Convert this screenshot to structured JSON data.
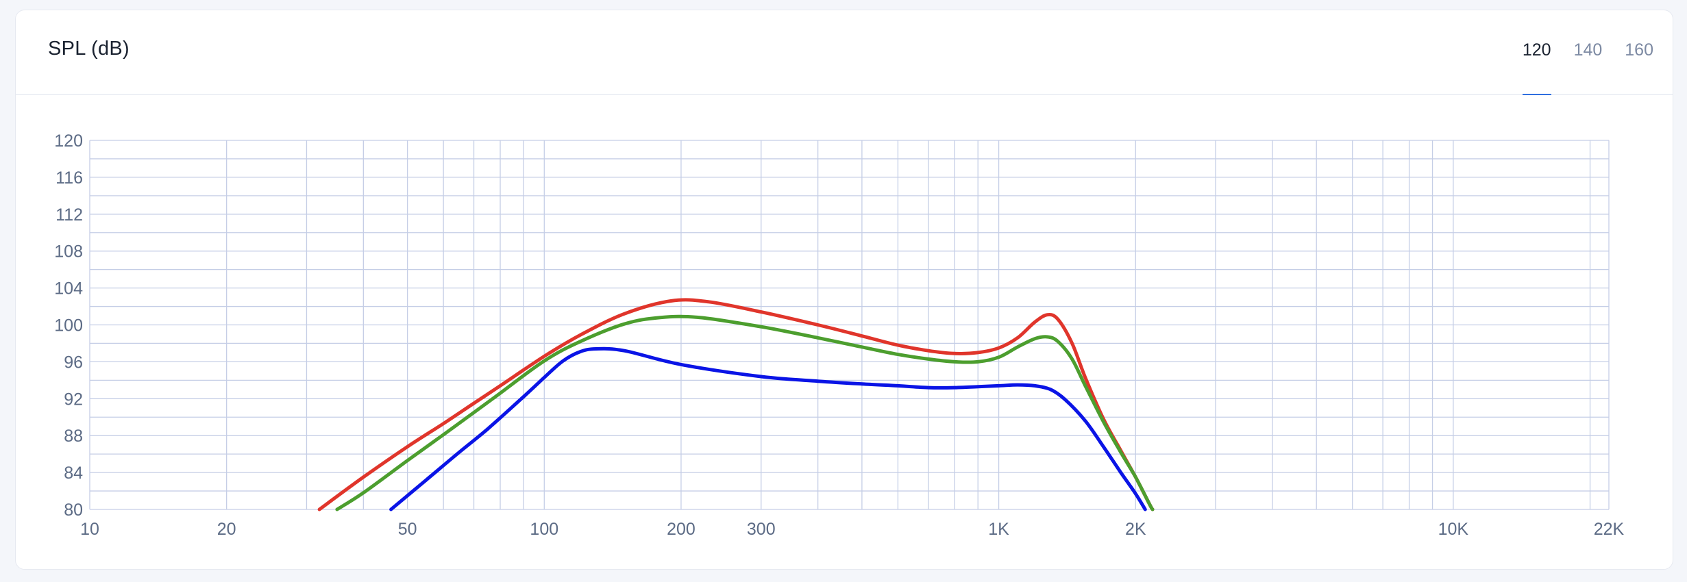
{
  "header": {
    "title": "SPL (dB)",
    "tabs": [
      {
        "label": "120",
        "active": true
      },
      {
        "label": "140",
        "active": false
      },
      {
        "label": "160",
        "active": false
      }
    ]
  },
  "colors": {
    "grid": "#c5cee6",
    "accent": "#2f6fe0",
    "series": [
      "#e0352b",
      "#4c9e2e",
      "#0a14e6"
    ]
  },
  "chart_data": {
    "type": "line",
    "title": "SPL (dB)",
    "xscale": "log",
    "xlim": [
      10,
      22000
    ],
    "ylim": [
      80,
      120
    ],
    "grid": true,
    "x_ticks": [
      {
        "value": 10,
        "label": "10"
      },
      {
        "value": 20,
        "label": "20"
      },
      {
        "value": 50,
        "label": "50"
      },
      {
        "value": 100,
        "label": "100"
      },
      {
        "value": 200,
        "label": "200"
      },
      {
        "value": 300,
        "label": "300"
      },
      {
        "value": 1000,
        "label": "1K"
      },
      {
        "value": 2000,
        "label": "2K"
      },
      {
        "value": 10000,
        "label": "10K"
      },
      {
        "value": 22000,
        "label": "22K"
      }
    ],
    "y_ticks": [
      80,
      84,
      88,
      92,
      96,
      100,
      104,
      108,
      112,
      116,
      120
    ],
    "y_minor_step": 2,
    "series": [
      {
        "color": "#e0352b",
        "points": [
          [
            32,
            80
          ],
          [
            40,
            83.5
          ],
          [
            50,
            86.8
          ],
          [
            60,
            89.3
          ],
          [
            70,
            91.5
          ],
          [
            80,
            93.4
          ],
          [
            100,
            96.6
          ],
          [
            120,
            98.9
          ],
          [
            150,
            101.2
          ],
          [
            190,
            102.6
          ],
          [
            230,
            102.5
          ],
          [
            300,
            101.4
          ],
          [
            400,
            100
          ],
          [
            500,
            98.8
          ],
          [
            600,
            97.8
          ],
          [
            700,
            97.2
          ],
          [
            800,
            96.9
          ],
          [
            900,
            97
          ],
          [
            1000,
            97.5
          ],
          [
            1100,
            98.6
          ],
          [
            1200,
            100.3
          ],
          [
            1280,
            101.1
          ],
          [
            1350,
            100.6
          ],
          [
            1450,
            98
          ],
          [
            1550,
            94.3
          ],
          [
            1700,
            89.8
          ],
          [
            1850,
            86.5
          ],
          [
            2000,
            83.5
          ],
          [
            2150,
            80.5
          ],
          [
            2180,
            80
          ]
        ]
      },
      {
        "color": "#4c9e2e",
        "points": [
          [
            35,
            80
          ],
          [
            40,
            81.8
          ],
          [
            50,
            85.3
          ],
          [
            60,
            88.1
          ],
          [
            70,
            90.5
          ],
          [
            80,
            92.6
          ],
          [
            100,
            96.1
          ],
          [
            120,
            98.2
          ],
          [
            150,
            100.1
          ],
          [
            180,
            100.8
          ],
          [
            220,
            100.8
          ],
          [
            300,
            99.8
          ],
          [
            400,
            98.6
          ],
          [
            500,
            97.6
          ],
          [
            600,
            96.8
          ],
          [
            700,
            96.3
          ],
          [
            800,
            96
          ],
          [
            900,
            96
          ],
          [
            1000,
            96.5
          ],
          [
            1100,
            97.6
          ],
          [
            1200,
            98.5
          ],
          [
            1280,
            98.7
          ],
          [
            1350,
            98.2
          ],
          [
            1450,
            96.3
          ],
          [
            1550,
            93.4
          ],
          [
            1700,
            89.5
          ],
          [
            1850,
            86.3
          ],
          [
            2000,
            83.5
          ],
          [
            2150,
            80.5
          ],
          [
            2180,
            80
          ]
        ]
      },
      {
        "color": "#0a14e6",
        "points": [
          [
            46,
            80
          ],
          [
            55,
            83.2
          ],
          [
            65,
            86.2
          ],
          [
            75,
            88.7
          ],
          [
            90,
            92.2
          ],
          [
            100,
            94.3
          ],
          [
            110,
            96.1
          ],
          [
            120,
            97.1
          ],
          [
            130,
            97.4
          ],
          [
            150,
            97.2
          ],
          [
            200,
            95.7
          ],
          [
            300,
            94.4
          ],
          [
            400,
            93.9
          ],
          [
            500,
            93.6
          ],
          [
            600,
            93.4
          ],
          [
            700,
            93.2
          ],
          [
            800,
            93.2
          ],
          [
            900,
            93.3
          ],
          [
            1000,
            93.4
          ],
          [
            1100,
            93.5
          ],
          [
            1200,
            93.4
          ],
          [
            1300,
            93
          ],
          [
            1400,
            91.9
          ],
          [
            1550,
            89.6
          ],
          [
            1700,
            86.8
          ],
          [
            1850,
            84.1
          ],
          [
            2000,
            81.7
          ],
          [
            2100,
            80
          ]
        ]
      }
    ]
  }
}
